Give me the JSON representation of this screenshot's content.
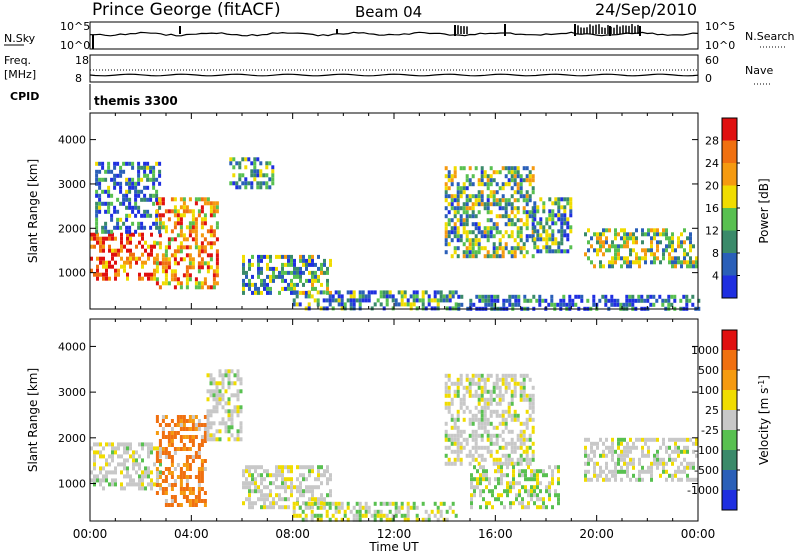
{
  "header": {
    "station": "Prince George (fitACF)",
    "beam": "Beam 04",
    "date": "24/Sep/2010"
  },
  "noise_panel": {
    "left_label": "N.Sky",
    "left_ticks": [
      "10^5",
      "10^0"
    ],
    "right_label": "N.Search",
    "right_ticks": [
      "10^5",
      "10^0"
    ]
  },
  "freq_panel": {
    "left_label_1": "Freq.",
    "left_label_2": "[MHz]",
    "left_ticks": [
      "18",
      "8"
    ],
    "right_label": "Nave",
    "right_ticks": [
      "60",
      "0"
    ]
  },
  "cpid_panel": {
    "label": "CPID",
    "value": "themis 3300"
  },
  "x_axis": {
    "label": "Time UT",
    "ticks": [
      "00:00",
      "04:00",
      "08:00",
      "12:00",
      "16:00",
      "20:00",
      "00:00"
    ]
  },
  "chart_data": [
    {
      "type": "heatmap",
      "quantity": "power",
      "xlabel": "Time UT",
      "ylabel": "Slant Range [km]",
      "xlim": [
        0,
        24
      ],
      "ylim": [
        180,
        4600
      ],
      "yticks": [
        1000,
        2000,
        3000,
        4000
      ],
      "colorbar": {
        "label": "Power [dB]",
        "ticks": [
          "4",
          "8",
          "12",
          "16",
          "20",
          "24",
          "28"
        ],
        "colors": [
          "#1f2fe0",
          "#2a5fb8",
          "#3a8a6a",
          "#58c050",
          "#f0dc00",
          "#f59a10",
          "#f07010",
          "#e01010"
        ]
      },
      "regions": [
        {
          "t0": 0.0,
          "t1": 2.6,
          "r0": 900,
          "r1": 1900,
          "level": 0.85
        },
        {
          "t0": 2.6,
          "t1": 5.0,
          "r0": 700,
          "r1": 2700,
          "level": 0.7
        },
        {
          "t0": 0.2,
          "t1": 2.8,
          "r0": 1900,
          "r1": 3500,
          "level": 0.25
        },
        {
          "t0": 5.5,
          "t1": 7.2,
          "r0": 2900,
          "r1": 3600,
          "level": 0.3
        },
        {
          "t0": 6.0,
          "t1": 9.5,
          "r0": 500,
          "r1": 1400,
          "level": 0.35
        },
        {
          "t0": 8.0,
          "t1": 14.5,
          "r0": 200,
          "r1": 600,
          "level": 0.3
        },
        {
          "t0": 14.0,
          "t1": 17.5,
          "r0": 1400,
          "r1": 3400,
          "level": 0.4
        },
        {
          "t0": 17.5,
          "t1": 19.0,
          "r0": 1500,
          "r1": 2700,
          "level": 0.3
        },
        {
          "t0": 19.5,
          "t1": 24.0,
          "r0": 1100,
          "r1": 2000,
          "level": 0.45
        },
        {
          "t0": 14.5,
          "t1": 24.0,
          "r0": 200,
          "r1": 500,
          "level": 0.2
        }
      ]
    },
    {
      "type": "heatmap",
      "quantity": "velocity",
      "xlabel": "Time UT",
      "ylabel": "Slant Range [km]",
      "xlim": [
        0,
        24
      ],
      "ylim": [
        180,
        4600
      ],
      "yticks": [
        1000,
        2000,
        3000,
        4000
      ],
      "colorbar": {
        "label": "Velocity [m s",
        "label_sup": "-1",
        "label_end": "]",
        "ticks": [
          "1000",
          "500",
          "100",
          "25",
          "-25",
          "-100",
          "-500",
          "-1000"
        ],
        "colors": [
          "#1f2fe0",
          "#2a5fb8",
          "#3a8a6a",
          "#58c050",
          "#c8c8c8",
          "#f0dc00",
          "#f59a10",
          "#f07010",
          "#e01010"
        ]
      },
      "regions": [
        {
          "t0": 0.0,
          "t1": 2.8,
          "r0": 900,
          "r1": 1900,
          "level": 0.5
        },
        {
          "t0": 2.6,
          "t1": 4.6,
          "r0": 500,
          "r1": 2500,
          "level": 0.85
        },
        {
          "t0": 4.6,
          "t1": 6.0,
          "r0": 2000,
          "r1": 3500,
          "level": 0.5
        },
        {
          "t0": 6.0,
          "t1": 9.5,
          "r0": 500,
          "r1": 1400,
          "level": 0.5
        },
        {
          "t0": 8.0,
          "t1": 14.5,
          "r0": 200,
          "r1": 600,
          "level": 0.35
        },
        {
          "t0": 14.0,
          "t1": 17.5,
          "r0": 1400,
          "r1": 3400,
          "level": 0.5
        },
        {
          "t0": 15.0,
          "t1": 18.5,
          "r0": 500,
          "r1": 1400,
          "level": 0.3
        },
        {
          "t0": 19.5,
          "t1": 24.0,
          "r0": 1100,
          "r1": 2000,
          "level": 0.5
        }
      ]
    }
  ]
}
